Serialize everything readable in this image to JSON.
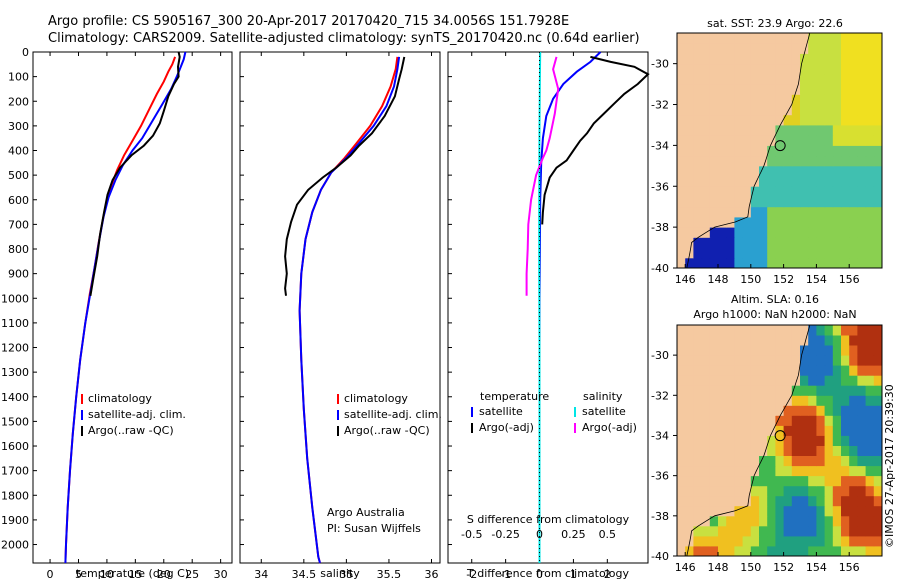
{
  "header": {
    "line1": "Argo profile: CS 5905167_300 20-Apr-2017 20170420_715 34.0056S 151.7928E",
    "line2": "Climatology: CARS2009. Satellite-adjusted climatology: synTS_20170420.nc (0.64d earlier)"
  },
  "colors": {
    "climatology": "#ff0000",
    "satellite": "#0000ff",
    "argo": "#000000",
    "sat_salinity": "#00e5e5",
    "argo_salinity_diff": "#ff00ff",
    "land": "#f5c9a0"
  },
  "chart_data": [
    {
      "type": "line",
      "id": "temperature",
      "xlabel": "temperature (deg C)",
      "xlim": [
        -3,
        32
      ],
      "ylim": [
        0,
        2075
      ],
      "y_reversed": true,
      "xticks": [
        0,
        5,
        10,
        15,
        20,
        25,
        30
      ],
      "yticks": [
        0,
        100,
        200,
        300,
        400,
        500,
        600,
        700,
        800,
        900,
        1000,
        1100,
        1200,
        1300,
        1400,
        1500,
        1600,
        1700,
        1800,
        1900,
        2000
      ],
      "legend": [
        "climatology",
        "satellite-adj. clim.",
        "Argo(..raw -QC)"
      ],
      "series": [
        {
          "name": "climatology",
          "color": "#ff0000",
          "points": [
            [
              22,
              20
            ],
            [
              21.5,
              50
            ],
            [
              20.8,
              80
            ],
            [
              20,
              120
            ],
            [
              18.8,
              170
            ],
            [
              17.5,
              230
            ],
            [
              16,
              300
            ],
            [
              14.5,
              360
            ],
            [
              13,
              420
            ],
            [
              11.8,
              480
            ],
            [
              10.8,
              540
            ],
            [
              10,
              600
            ],
            [
              9.3,
              680
            ],
            [
              8.5,
              780
            ],
            [
              7.8,
              880
            ],
            [
              7,
              980
            ],
            [
              6.2,
              1100
            ],
            [
              5.3,
              1250
            ],
            [
              4.6,
              1400
            ],
            [
              4,
              1550
            ],
            [
              3.5,
              1700
            ],
            [
              3.1,
              1850
            ],
            [
              2.8,
              2000
            ],
            [
              2.7,
              2075
            ]
          ]
        },
        {
          "name": "satellite-adj. clim.",
          "color": "#0000ff",
          "points": [
            [
              23.8,
              0
            ],
            [
              23.5,
              30
            ],
            [
              23,
              60
            ],
            [
              22.3,
              100
            ],
            [
              21.3,
              150
            ],
            [
              19.8,
              210
            ],
            [
              18,
              280
            ],
            [
              16.2,
              350
            ],
            [
              14.5,
              400
            ],
            [
              12.8,
              460
            ],
            [
              11.5,
              520
            ],
            [
              10.3,
              590
            ],
            [
              9.4,
              670
            ],
            [
              8.6,
              770
            ],
            [
              7.8,
              880
            ],
            [
              7,
              990
            ],
            [
              6.2,
              1100
            ],
            [
              5.3,
              1250
            ],
            [
              4.6,
              1400
            ],
            [
              4,
              1550
            ],
            [
              3.5,
              1700
            ],
            [
              3.1,
              1850
            ],
            [
              2.8,
              2000
            ],
            [
              2.7,
              2075
            ]
          ]
        },
        {
          "name": "Argo(..raw -QC)",
          "color": "#000000",
          "points": [
            [
              22.6,
              0
            ],
            [
              22.8,
              20
            ],
            [
              22.5,
              60
            ],
            [
              22.6,
              100
            ],
            [
              21.8,
              130
            ],
            [
              20.8,
              180
            ],
            [
              20,
              240
            ],
            [
              19.3,
              290
            ],
            [
              18.1,
              340
            ],
            [
              16.5,
              380
            ],
            [
              14.3,
              420
            ],
            [
              12.3,
              470
            ],
            [
              11,
              520
            ],
            [
              10.1,
              580
            ],
            [
              9.5,
              650
            ],
            [
              8.8,
              740
            ],
            [
              8.3,
              830
            ],
            [
              7.6,
              920
            ],
            [
              7.1,
              990
            ]
          ]
        }
      ]
    },
    {
      "type": "line",
      "id": "salinity",
      "xlabel": "salinity",
      "xlim": [
        33.75,
        36.1
      ],
      "ylim": [
        0,
        2075
      ],
      "y_reversed": true,
      "xticks": [
        34,
        34.5,
        35,
        35.5,
        36
      ],
      "legend": [
        "climatology",
        "satellite-adj. clim.",
        "Argo(..raw -QC)"
      ],
      "annotation": [
        "Argo Australia",
        "PI: Susan Wijffels"
      ],
      "series": [
        {
          "name": "climatology",
          "color": "#ff0000",
          "points": [
            [
              35.6,
              20
            ],
            [
              35.58,
              70
            ],
            [
              35.52,
              140
            ],
            [
              35.42,
              220
            ],
            [
              35.28,
              300
            ],
            [
              35.12,
              370
            ],
            [
              34.98,
              430
            ],
            [
              34.82,
              490
            ],
            [
              34.7,
              560
            ],
            [
              34.6,
              650
            ],
            [
              34.52,
              760
            ],
            [
              34.47,
              900
            ],
            [
              34.45,
              1050
            ],
            [
              34.47,
              1250
            ],
            [
              34.5,
              1450
            ],
            [
              34.54,
              1650
            ],
            [
              34.6,
              1850
            ],
            [
              34.67,
              2050
            ],
            [
              34.69,
              2075
            ]
          ]
        },
        {
          "name": "satellite-adj. clim.",
          "color": "#0000ff",
          "points": [
            [
              35.62,
              20
            ],
            [
              35.6,
              70
            ],
            [
              35.56,
              140
            ],
            [
              35.47,
              220
            ],
            [
              35.32,
              300
            ],
            [
              35.15,
              370
            ],
            [
              35,
              430
            ],
            [
              34.82,
              490
            ],
            [
              34.7,
              560
            ],
            [
              34.6,
              650
            ],
            [
              34.52,
              760
            ],
            [
              34.47,
              900
            ],
            [
              34.45,
              1050
            ],
            [
              34.47,
              1250
            ],
            [
              34.5,
              1450
            ],
            [
              34.54,
              1650
            ],
            [
              34.6,
              1850
            ],
            [
              34.67,
              2050
            ],
            [
              34.69,
              2075
            ]
          ]
        },
        {
          "name": "Argo(..raw -QC)",
          "color": "#000000",
          "points": [
            [
              35.68,
              20
            ],
            [
              35.65,
              70
            ],
            [
              35.62,
              110
            ],
            [
              35.57,
              180
            ],
            [
              35.45,
              260
            ],
            [
              35.3,
              330
            ],
            [
              35.15,
              380
            ],
            [
              35.05,
              420
            ],
            [
              34.88,
              470
            ],
            [
              34.72,
              510
            ],
            [
              34.55,
              560
            ],
            [
              34.42,
              620
            ],
            [
              34.35,
              690
            ],
            [
              34.3,
              760
            ],
            [
              34.28,
              830
            ],
            [
              34.3,
              900
            ],
            [
              34.28,
              960
            ],
            [
              34.29,
              990
            ]
          ]
        }
      ]
    },
    {
      "type": "line",
      "id": "difference",
      "xlabel": "T difference from climatology",
      "xlabel_top": "S difference from climatology",
      "xlim": [
        -2.7,
        3.2
      ],
      "ylim": [
        0,
        2075
      ],
      "y_reversed": true,
      "xticks": [
        -2,
        -1,
        0,
        1,
        2
      ],
      "sticks": [
        "-0.5",
        "-0.25",
        "0",
        "0.25",
        "0.5"
      ],
      "legend_groups": {
        "temperature": [
          "satellite",
          "Argo(-adj)"
        ],
        "salinity": [
          "satellite",
          "Argo(-adj)"
        ]
      },
      "series": [
        {
          "name": "temperature satellite",
          "color": "#0000ff",
          "points": [
            [
              1.8,
              0
            ],
            [
              1.5,
              40
            ],
            [
              1.1,
              80
            ],
            [
              0.7,
              130
            ],
            [
              0.4,
              190
            ],
            [
              0.2,
              260
            ],
            [
              0.1,
              350
            ],
            [
              0.05,
              450
            ],
            [
              0.02,
              600
            ],
            [
              0.01,
              800
            ],
            [
              0,
              1000
            ],
            [
              0,
              2075
            ]
          ]
        },
        {
          "name": "temperature Argo(-adj)",
          "color": "#000000",
          "points": [
            [
              1.5,
              20
            ],
            [
              2.1,
              40
            ],
            [
              2.8,
              60
            ],
            [
              3.2,
              90
            ],
            [
              2.9,
              130
            ],
            [
              2.5,
              170
            ],
            [
              2.2,
              210
            ],
            [
              1.9,
              250
            ],
            [
              1.6,
              290
            ],
            [
              1.4,
              330
            ],
            [
              1.2,
              360
            ],
            [
              1,
              400
            ],
            [
              0.8,
              440
            ],
            [
              0.5,
              470
            ],
            [
              0.3,
              510
            ],
            [
              0.15,
              580
            ],
            [
              0.1,
              650
            ],
            [
              0.08,
              700
            ]
          ]
        },
        {
          "name": "salinity satellite",
          "color": "#00e5e5",
          "points": [
            [
              0.02,
              0
            ],
            [
              0.01,
              100
            ],
            [
              0,
              300
            ],
            [
              -0.01,
              600
            ],
            [
              -0.01,
              900
            ],
            [
              0,
              1200
            ],
            [
              0,
              1500
            ],
            [
              0,
              1800
            ],
            [
              0,
              2075
            ]
          ]
        },
        {
          "name": "salinity Argo(-adj)",
          "color": "#ff00ff",
          "points": [
            [
              0.5,
              20
            ],
            [
              0.4,
              70
            ],
            [
              0.55,
              150
            ],
            [
              0.45,
              250
            ],
            [
              0.3,
              350
            ],
            [
              0.2,
              400
            ],
            [
              0.1,
              430
            ],
            [
              -0.1,
              500
            ],
            [
              -0.25,
              600
            ],
            [
              -0.33,
              700
            ],
            [
              -0.35,
              800
            ],
            [
              -0.38,
              900
            ],
            [
              -0.38,
              990
            ]
          ]
        }
      ]
    },
    {
      "type": "heatmap",
      "id": "sst_map",
      "title": "sat. SST: 23.9  Argo: 22.6",
      "xlim": [
        145.5,
        158
      ],
      "ylim": [
        -40,
        -28.5
      ],
      "xticks": [
        146,
        148,
        150,
        152,
        154,
        156
      ],
      "yticks": [
        -30,
        -32,
        -34,
        -36,
        -38,
        -40
      ],
      "argo_location": [
        151.79,
        -34.01
      ]
    },
    {
      "type": "heatmap",
      "id": "sla_map",
      "title": [
        "Altim. SLA: 0.16",
        "Argo h1000: NaN h2000: NaN"
      ],
      "xlim": [
        145.5,
        158
      ],
      "ylim": [
        -40,
        -28.5
      ],
      "xticks": [
        146,
        148,
        150,
        152,
        154,
        156
      ],
      "yticks": [
        -30,
        -32,
        -34,
        -36,
        -38,
        -40
      ],
      "argo_location": [
        151.79,
        -34.01
      ]
    }
  ],
  "watermark": "©IMOS 27-Apr-2017 20:39:30"
}
